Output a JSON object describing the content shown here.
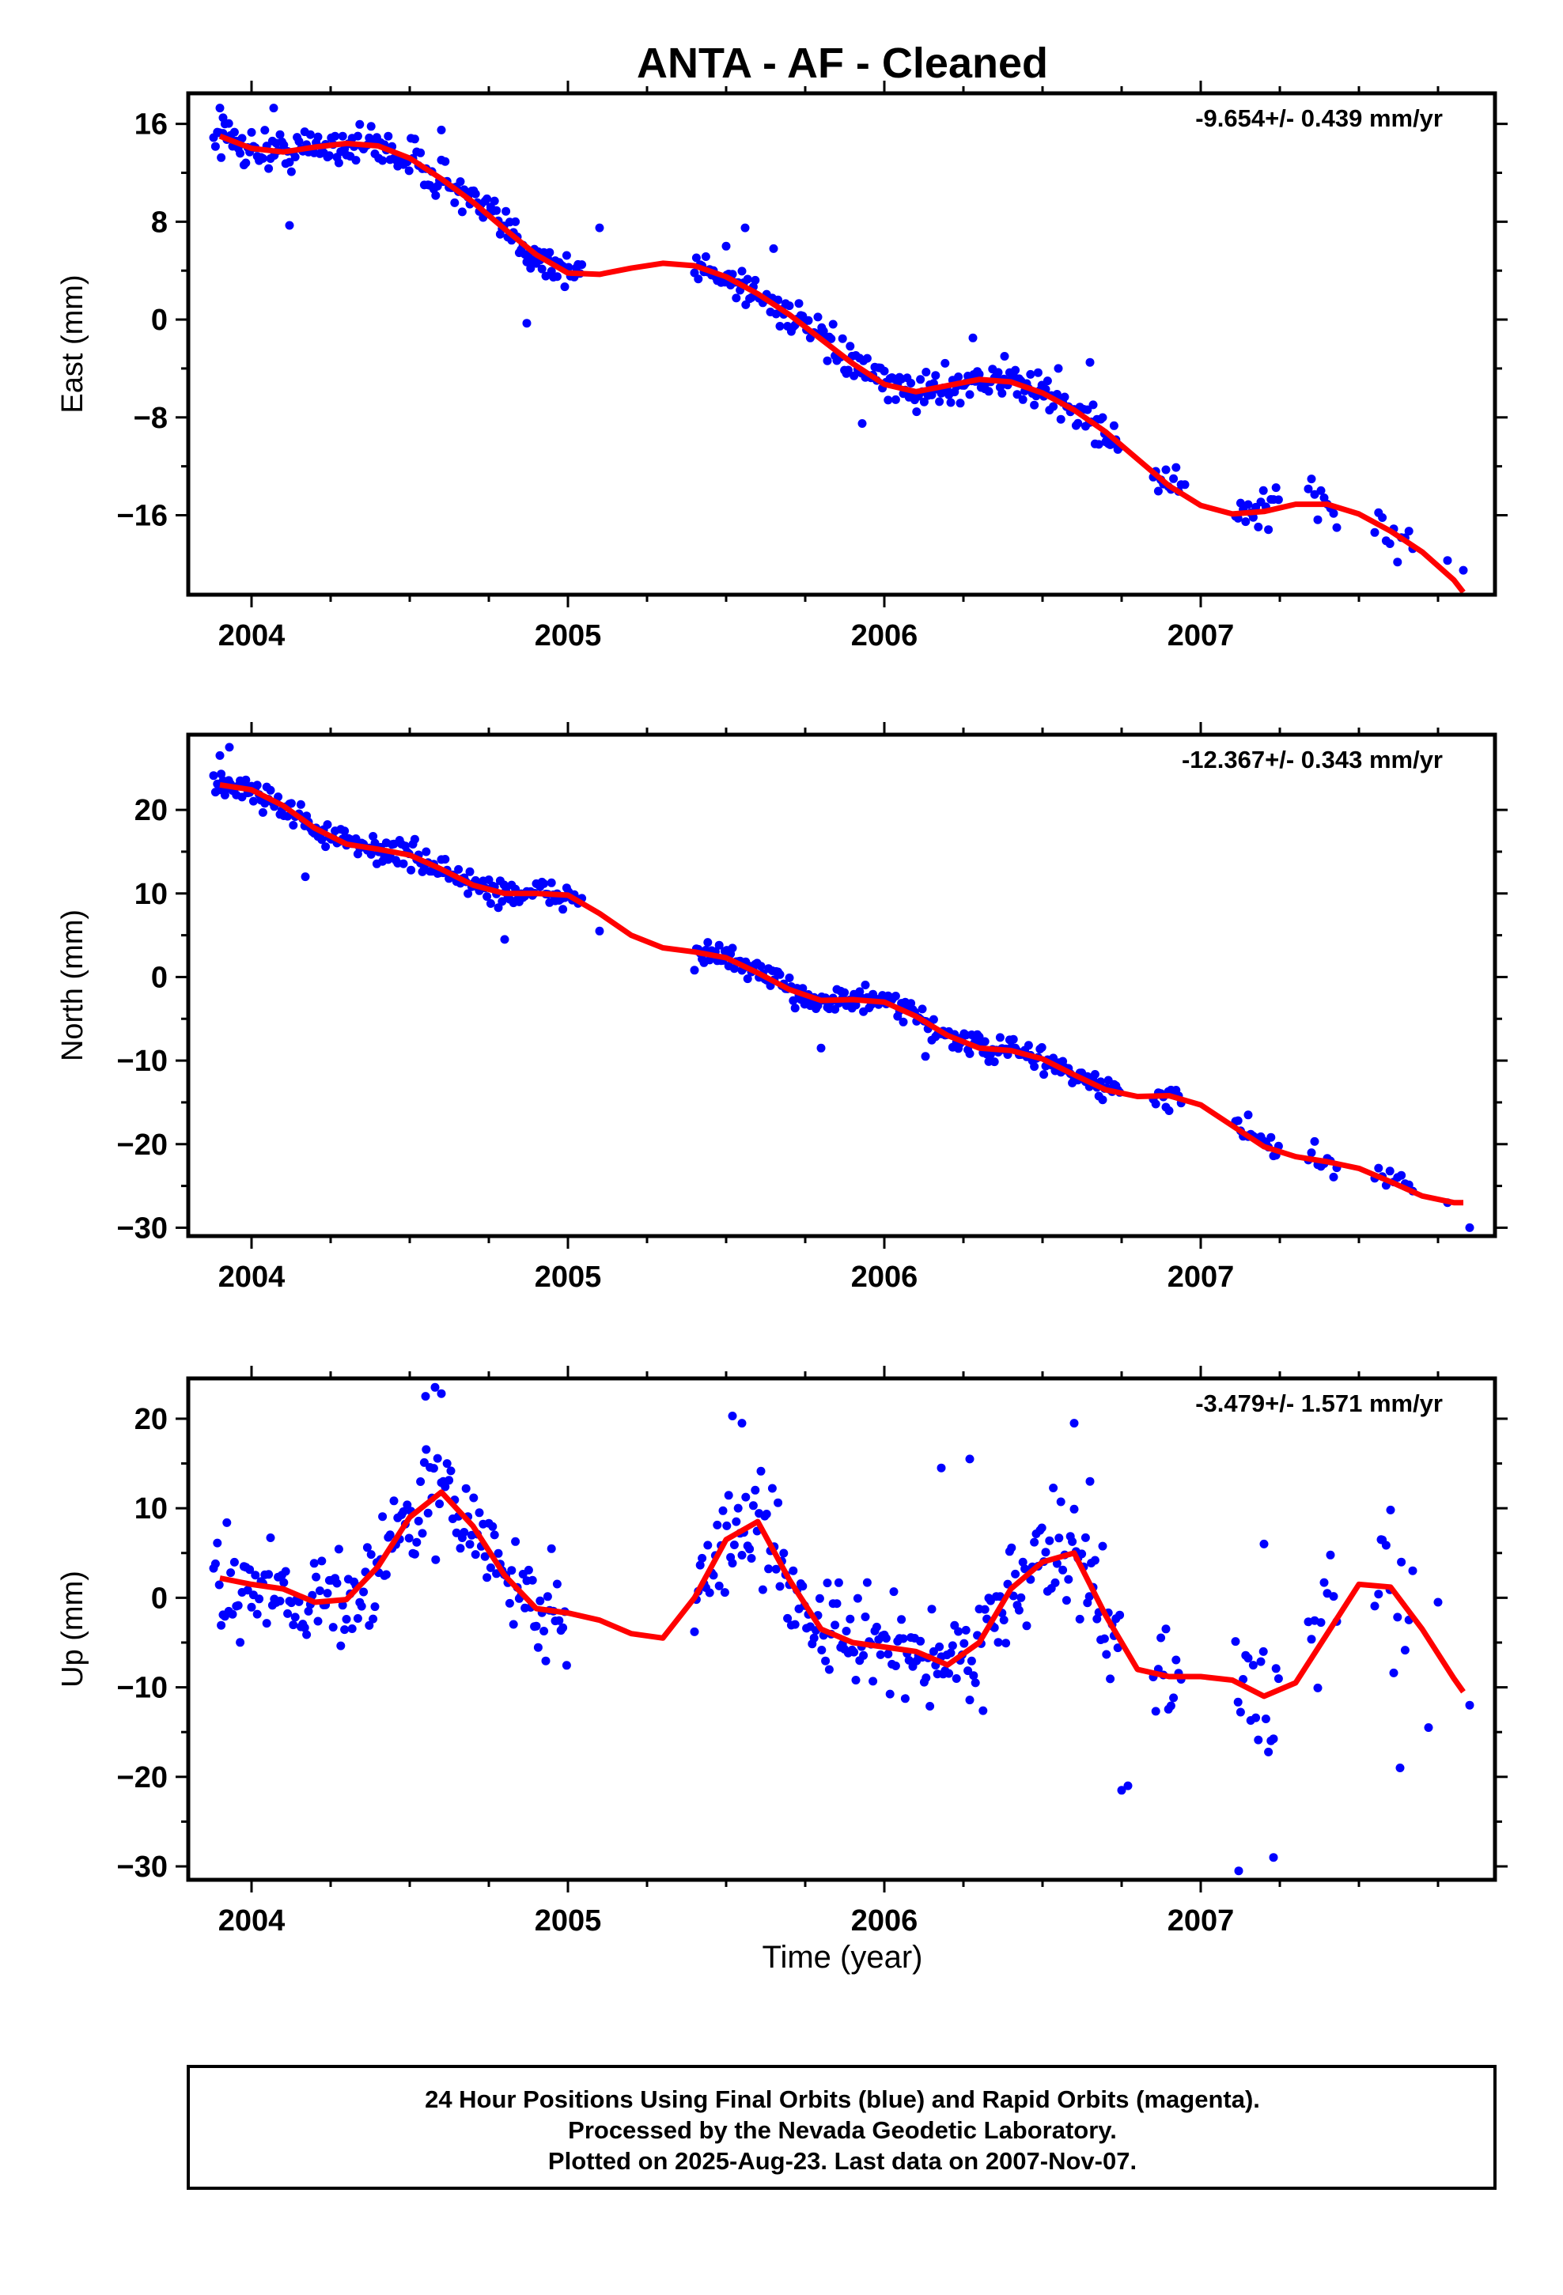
{
  "title": "ANTA  - AF - Cleaned",
  "xlabel": "Time (year)",
  "footer": {
    "line1": "24 Hour Positions Using Final Orbits (blue) and Rapid Orbits (magenta).",
    "line2": "Processed by the Nevada Geodetic Laboratory.",
    "line3": "Plotted on 2025-Aug-23. Last data on 2007-Nov-07."
  },
  "colors": {
    "data": "#0000ff",
    "model": "#ff0000",
    "frame": "#000000"
  },
  "chart_data": [
    {
      "type": "scatter",
      "ylabel": "East (mm)",
      "rate": "-9.654+/- 0.439 mm/yr",
      "xlim": [
        2003.8,
        2007.93
      ],
      "ylim": [
        -22.5,
        18.5
      ],
      "xticks": [
        2004,
        2005,
        2006,
        2007
      ],
      "xtick_labels": [
        "2004",
        "2005",
        "2006",
        "2007"
      ],
      "yticks": [
        16,
        8,
        0,
        -8,
        -16
      ],
      "ytick_labels": [
        "16",
        "8",
        "0",
        "−8",
        "−16"
      ],
      "model": {
        "name": "",
        "x": [
          2003.9,
          2004.0,
          2004.1,
          2004.2,
          2004.3,
          2004.4,
          2004.5,
          2004.6,
          2004.7,
          2004.8,
          2004.9,
          2005.0,
          2005.1,
          2005.2,
          2005.3,
          2005.4,
          2005.5,
          2005.6,
          2005.7,
          2005.8,
          2005.9,
          2006.0,
          2006.1,
          2006.2,
          2006.3,
          2006.4,
          2006.5,
          2006.6,
          2006.7,
          2006.8,
          2006.9,
          2007.0,
          2007.1,
          2007.2,
          2007.3,
          2007.4,
          2007.5,
          2007.6,
          2007.7,
          2007.8,
          2007.83
        ],
        "y": [
          15.0,
          14.0,
          13.7,
          14.1,
          14.4,
          14.2,
          13.2,
          11.5,
          9.6,
          7.4,
          5.3,
          3.8,
          3.7,
          4.2,
          4.6,
          4.4,
          3.5,
          2.1,
          0.4,
          -1.6,
          -3.6,
          -5.3,
          -5.9,
          -5.4,
          -4.9,
          -5.1,
          -6.0,
          -7.4,
          -9.2,
          -11.4,
          -13.6,
          -15.2,
          -15.9,
          -15.7,
          -15.1,
          -15.1,
          -15.9,
          -17.3,
          -19.0,
          -21.3,
          -22.3
        ]
      },
      "data": {
        "name": "",
        "segments": [
          {
            "from": 2003.88,
            "to": 2005.05,
            "step": 0.006,
            "spread": 1.2
          },
          {
            "from": 2005.4,
            "to": 2006.75,
            "step": 0.006,
            "spread": 1.0
          },
          {
            "from": 2006.85,
            "to": 2006.94,
            "step": 0.008,
            "spread": 1.4
          },
          {
            "from": 2007.11,
            "to": 2007.25,
            "step": 0.008,
            "spread": 1.4
          },
          {
            "from": 2007.34,
            "to": 2007.43,
            "step": 0.01,
            "spread": 1.4
          },
          {
            "from": 2007.55,
            "to": 2007.67,
            "step": 0.012,
            "spread": 1.6
          }
        ],
        "points_x": [
          2003.9,
          2003.91,
          2004.07,
          2004.12,
          2004.6,
          2004.87,
          2005.1,
          2005.5,
          2005.56,
          2005.65,
          2005.93,
          2006.28,
          2006.38,
          2006.55,
          2006.65,
          2006.7,
          2006.95,
          2007.78,
          2007.83
        ],
        "points_y": [
          17.3,
          16.5,
          17.3,
          7.7,
          15.5,
          -0.3,
          7.5,
          6.0,
          7.5,
          5.8,
          -8.5,
          -1.5,
          -3.0,
          -4.0,
          -3.5,
          -10.0,
          -13.5,
          -19.7,
          -20.5
        ]
      }
    },
    {
      "type": "scatter",
      "ylabel": "North (mm)",
      "rate": "-12.367+/- 0.343 mm/yr",
      "xlim": [
        2003.8,
        2007.93
      ],
      "ylim": [
        -31,
        29
      ],
      "xticks": [
        2004,
        2005,
        2006,
        2007
      ],
      "xtick_labels": [
        "2004",
        "2005",
        "2006",
        "2007"
      ],
      "yticks": [
        20,
        10,
        0,
        -10,
        -20,
        -30
      ],
      "ytick_labels": [
        "20",
        "10",
        "0",
        "−10",
        "−20",
        "−30"
      ],
      "model": {
        "name": "",
        "x": [
          2003.9,
          2004.0,
          2004.1,
          2004.2,
          2004.3,
          2004.4,
          2004.5,
          2004.6,
          2004.7,
          2004.8,
          2004.9,
          2005.0,
          2005.1,
          2005.2,
          2005.3,
          2005.4,
          2005.5,
          2005.6,
          2005.7,
          2005.8,
          2005.9,
          2006.0,
          2006.1,
          2006.2,
          2006.3,
          2006.4,
          2006.5,
          2006.6,
          2006.7,
          2006.8,
          2006.9,
          2007.0,
          2007.1,
          2007.2,
          2007.3,
          2007.4,
          2007.5,
          2007.6,
          2007.7,
          2007.8,
          2007.83
        ],
        "y": [
          23.0,
          22.4,
          20.5,
          17.8,
          15.9,
          15.3,
          14.6,
          12.9,
          11.0,
          10.0,
          10.0,
          9.8,
          7.6,
          5.0,
          3.5,
          3.0,
          2.3,
          0.5,
          -1.5,
          -2.8,
          -2.7,
          -3.0,
          -4.7,
          -7.0,
          -8.5,
          -8.8,
          -9.8,
          -11.7,
          -13.5,
          -14.3,
          -14.2,
          -15.3,
          -17.8,
          -20.3,
          -21.5,
          -22.1,
          -22.9,
          -24.5,
          -26.2,
          -27.0,
          -27.0
        ]
      },
      "data": {
        "name": "",
        "segments": [
          {
            "from": 2003.88,
            "to": 2005.05,
            "step": 0.006,
            "spread": 1.2
          },
          {
            "from": 2005.4,
            "to": 2006.75,
            "step": 0.006,
            "spread": 1.1
          },
          {
            "from": 2006.85,
            "to": 2006.94,
            "step": 0.008,
            "spread": 1.0
          },
          {
            "from": 2007.11,
            "to": 2007.25,
            "step": 0.008,
            "spread": 1.2
          },
          {
            "from": 2007.34,
            "to": 2007.43,
            "step": 0.01,
            "spread": 1.2
          },
          {
            "from": 2007.55,
            "to": 2007.67,
            "step": 0.012,
            "spread": 1.3
          }
        ],
        "points_x": [
          2003.9,
          2003.93,
          2004.17,
          2004.8,
          2005.1,
          2005.8,
          2006.13,
          2006.9,
          2007.15,
          2007.78,
          2007.85
        ],
        "points_y": [
          26.5,
          27.5,
          12.0,
          4.5,
          5.5,
          -8.5,
          -9.5,
          -16.0,
          -16.5,
          -27.0,
          -30.0
        ]
      }
    },
    {
      "type": "scatter",
      "ylabel": "Up (mm)",
      "rate": "-3.479+/- 1.571 mm/yr",
      "xlim": [
        2003.8,
        2007.93
      ],
      "ylim": [
        -31.5,
        24.5
      ],
      "xticks": [
        2004,
        2005,
        2006,
        2007
      ],
      "xtick_labels": [
        "2004",
        "2005",
        "2006",
        "2007"
      ],
      "yticks": [
        20,
        10,
        0,
        -10,
        -20,
        -30
      ],
      "ytick_labels": [
        "20",
        "10",
        "0",
        "−10",
        "−20",
        "−30"
      ],
      "model": {
        "name": "",
        "x": [
          2003.9,
          2004.0,
          2004.1,
          2004.2,
          2004.3,
          2004.4,
          2004.5,
          2004.6,
          2004.7,
          2004.8,
          2004.9,
          2005.0,
          2005.1,
          2005.2,
          2005.3,
          2005.4,
          2005.5,
          2005.6,
          2005.7,
          2005.8,
          2005.9,
          2006.0,
          2006.1,
          2006.2,
          2006.3,
          2006.4,
          2006.5,
          2006.6,
          2006.7,
          2006.8,
          2006.9,
          2007.0,
          2007.1,
          2007.2,
          2007.3,
          2007.4,
          2007.5,
          2007.6,
          2007.7,
          2007.8,
          2007.83
        ],
        "y": [
          2.2,
          1.5,
          1.0,
          -0.5,
          -0.2,
          3.5,
          9.0,
          11.8,
          8.0,
          2.5,
          -1.2,
          -1.7,
          -2.5,
          -4.0,
          -4.5,
          0.0,
          6.5,
          8.5,
          2.0,
          -3.5,
          -5.0,
          -5.5,
          -6.0,
          -7.5,
          -5.0,
          1.0,
          4.0,
          5.0,
          -2.0,
          -8.0,
          -8.8,
          -8.8,
          -9.2,
          -11.0,
          -9.5,
          -4.0,
          1.5,
          1.2,
          -3.5,
          -9.0,
          -10.5
        ]
      },
      "data": {
        "name": "",
        "segments": [
          {
            "from": 2003.88,
            "to": 2005.0,
            "step": 0.006,
            "spread": 4.0
          },
          {
            "from": 2005.4,
            "to": 2006.75,
            "step": 0.006,
            "spread": 4.0
          },
          {
            "from": 2006.85,
            "to": 2006.94,
            "step": 0.008,
            "spread": 5.0
          },
          {
            "from": 2007.11,
            "to": 2007.25,
            "step": 0.008,
            "spread": 5.0
          },
          {
            "from": 2007.34,
            "to": 2007.43,
            "step": 0.01,
            "spread": 5.0
          },
          {
            "from": 2007.55,
            "to": 2007.67,
            "step": 0.012,
            "spread": 5.0
          }
        ],
        "points_x": [
          2004.58,
          2004.55,
          2004.6,
          2005.52,
          2005.55,
          2006.18,
          2006.27,
          2006.6,
          2006.65,
          2006.75,
          2006.77,
          2007.12,
          2007.2,
          2007.23,
          2007.57,
          2007.6,
          2007.63,
          2007.72,
          2007.75,
          2007.85
        ],
        "points_y": [
          23.5,
          22.5,
          22.8,
          20.3,
          19.5,
          14.5,
          15.5,
          19.5,
          13.0,
          -21.5,
          -21.0,
          -30.5,
          6.0,
          -29.0,
          6.5,
          9.8,
          -19.0,
          -14.5,
          -0.5,
          -12.0
        ]
      }
    }
  ]
}
